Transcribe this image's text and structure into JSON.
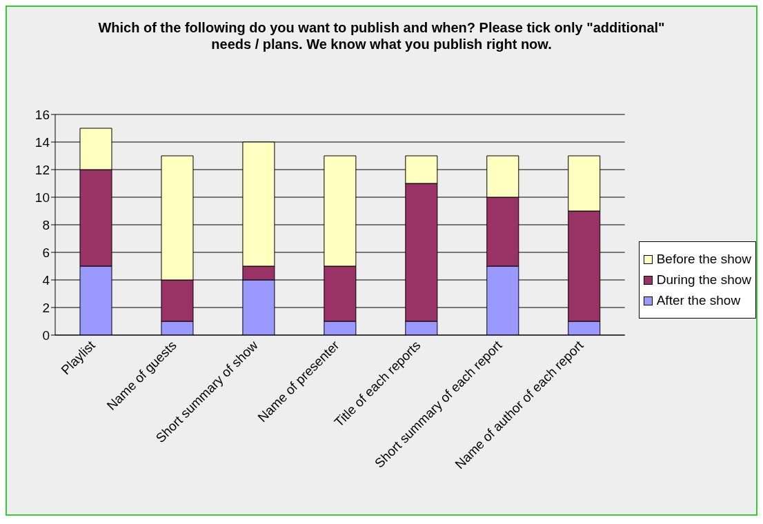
{
  "chart_data": {
    "type": "bar",
    "title": "Which of the following do you want to publish and when? Please tick only \"additional\" needs / plans. We know what you publish right now.",
    "categories": [
      "Playlist",
      "Name of guests",
      "Short summary of show",
      "Name of presenter",
      "Title of each reports",
      "Short summary of each report",
      "Name of author of each report"
    ],
    "series": [
      {
        "name": "After the show",
        "color": "#9999ff",
        "values": [
          5,
          1,
          4,
          1,
          1,
          5,
          1
        ]
      },
      {
        "name": "During the show",
        "color": "#993366",
        "values": [
          7,
          3,
          1,
          4,
          10,
          5,
          8
        ]
      },
      {
        "name": "Before the show",
        "color": "#ffffc0",
        "values": [
          3,
          9,
          9,
          8,
          2,
          3,
          4
        ]
      }
    ],
    "stacked": true,
    "ylim": [
      0,
      16
    ],
    "yticks": [
      0,
      2,
      4,
      6,
      8,
      10,
      12,
      14,
      16
    ],
    "grid": "y",
    "legend": "right"
  }
}
